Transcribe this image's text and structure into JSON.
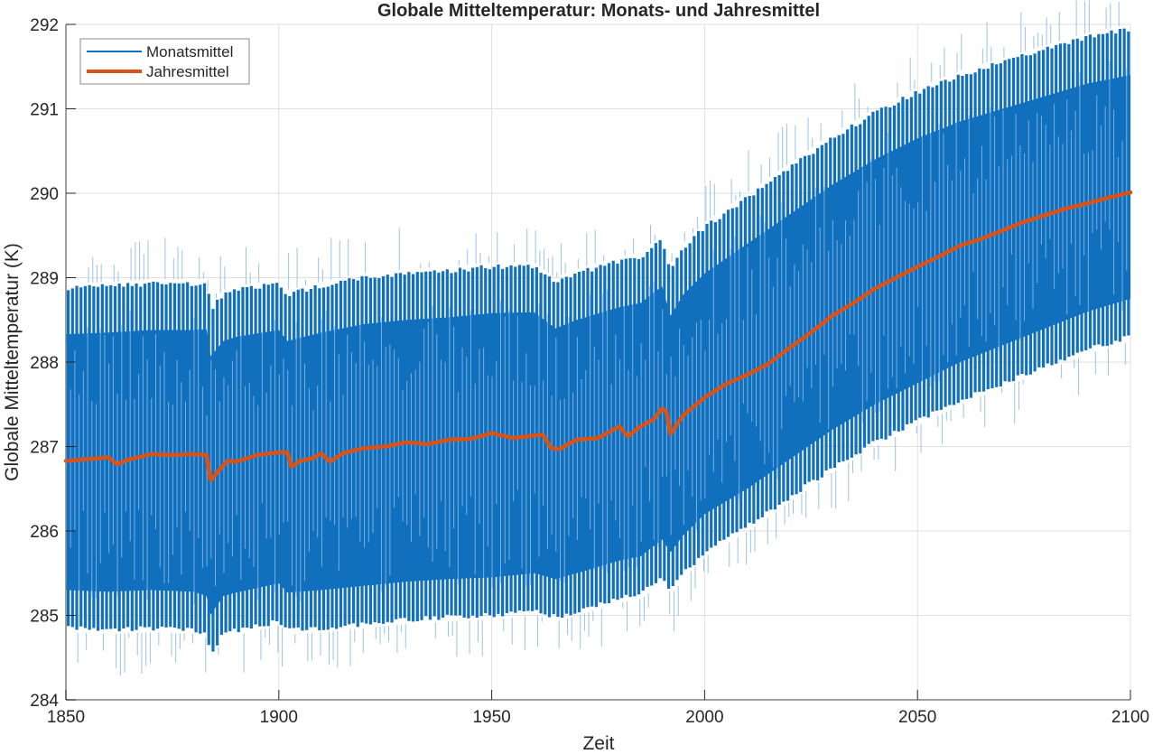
{
  "chart_data": {
    "type": "line",
    "title": "Globale Mitteltemperatur: Monats- und Jahresmittel",
    "xlabel": "Zeit",
    "ylabel": "Globale Mitteltemperatur (K)",
    "xlim": [
      1850,
      2100
    ],
    "ylim": [
      284,
      292
    ],
    "xticks": [
      1850,
      1900,
      1950,
      2000,
      2050,
      2100
    ],
    "xtick_labels": [
      "1850",
      "1900",
      "1950",
      "2000",
      "2050",
      "2100"
    ],
    "yticks": [
      284,
      285,
      286,
      287,
      288,
      289,
      290,
      291,
      292
    ],
    "ytick_labels": [
      "284",
      "285",
      "286",
      "287",
      "288",
      "289",
      "290",
      "291",
      "292"
    ],
    "grid": true,
    "legend_position": "top-left",
    "colors": {
      "monthly": "#1070BE",
      "annual": "#D95319",
      "grid": "#DFDFDF",
      "axis": "#808080",
      "text": "#262626"
    },
    "series": [
      {
        "name": "Monatsmittel",
        "kind": "monthly-envelope",
        "note_values": "seasonal max/min per year, K",
        "x": [
          1850,
          1860,
          1870,
          1880,
          1883,
          1884,
          1887,
          1890,
          1900,
          1902,
          1910,
          1920,
          1930,
          1940,
          1950,
          1960,
          1965,
          1970,
          1980,
          1985,
          1990,
          1992,
          1995,
          2000,
          2010,
          2020,
          2030,
          2040,
          2050,
          2060,
          2070,
          2080,
          2090,
          2100
        ],
        "upper": [
          288.88,
          288.9,
          288.93,
          288.93,
          288.94,
          288.62,
          288.8,
          288.85,
          288.93,
          288.8,
          288.9,
          289.0,
          289.05,
          289.08,
          289.13,
          289.14,
          288.95,
          289.05,
          289.2,
          289.25,
          289.45,
          289.1,
          289.35,
          289.6,
          289.95,
          290.3,
          290.65,
          290.95,
          291.2,
          291.4,
          291.55,
          291.7,
          291.85,
          291.95
        ],
        "lower": [
          284.85,
          284.83,
          284.85,
          284.83,
          284.78,
          284.56,
          284.78,
          284.82,
          284.93,
          284.82,
          284.85,
          284.9,
          284.95,
          284.98,
          285.0,
          285.05,
          284.98,
          285.05,
          285.2,
          285.25,
          285.45,
          285.3,
          285.5,
          285.75,
          286.05,
          286.4,
          286.75,
          287.05,
          287.3,
          287.55,
          287.75,
          287.95,
          288.15,
          288.3
        ]
      },
      {
        "name": "Jahresmittel",
        "kind": "line",
        "x": [
          1850,
          1855,
          1860,
          1862,
          1865,
          1870,
          1875,
          1880,
          1883,
          1884,
          1886,
          1888,
          1890,
          1895,
          1900,
          1902,
          1903,
          1905,
          1908,
          1910,
          1912,
          1915,
          1920,
          1925,
          1930,
          1935,
          1940,
          1945,
          1948,
          1950,
          1955,
          1960,
          1962,
          1964,
          1966,
          1968,
          1970,
          1975,
          1980,
          1982,
          1985,
          1988,
          1990,
          1991,
          1992,
          1995,
          2000,
          2005,
          2010,
          2015,
          2020,
          2025,
          2030,
          2035,
          2040,
          2045,
          2050,
          2055,
          2060,
          2065,
          2070,
          2075,
          2080,
          2085,
          2090,
          2095,
          2100
        ],
        "y": [
          286.83,
          286.85,
          286.87,
          286.79,
          286.85,
          286.91,
          286.9,
          286.91,
          286.9,
          286.6,
          286.72,
          286.83,
          286.82,
          286.9,
          286.93,
          286.93,
          286.76,
          286.83,
          286.86,
          286.92,
          286.82,
          286.92,
          286.98,
          287.0,
          287.05,
          287.03,
          287.08,
          287.09,
          287.13,
          287.16,
          287.1,
          287.13,
          287.14,
          286.98,
          286.97,
          287.03,
          287.08,
          287.1,
          287.24,
          287.12,
          287.24,
          287.32,
          287.45,
          287.42,
          287.15,
          287.37,
          287.58,
          287.74,
          287.85,
          287.98,
          288.17,
          288.35,
          288.55,
          288.7,
          288.87,
          289.0,
          289.13,
          289.25,
          289.38,
          289.46,
          289.56,
          289.66,
          289.74,
          289.82,
          289.88,
          289.95,
          290.01
        ]
      }
    ]
  }
}
